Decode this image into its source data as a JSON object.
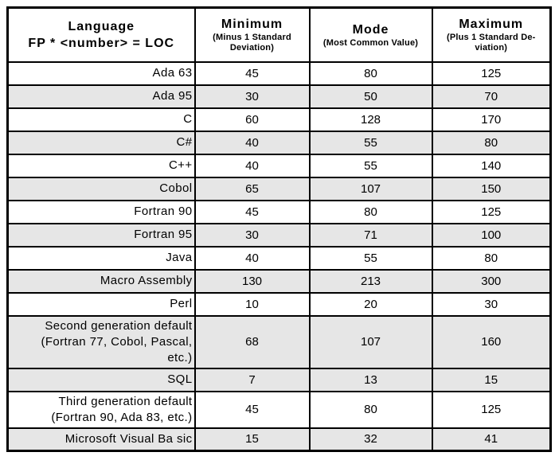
{
  "colors": {
    "row_shade": "#e6e6e6",
    "border": "#000000",
    "background": "#ffffff"
  },
  "table": {
    "header": {
      "language_title": "Language\nFP * <number> = LOC",
      "columns": [
        {
          "title": "Minimum",
          "subtitle": "(Minus 1 Standard\nDeviation)"
        },
        {
          "title": "Mode",
          "subtitle": "(Most Common Value)"
        },
        {
          "title": "Maximum",
          "subtitle": "(Plus 1 Standard De-\nviation)"
        }
      ]
    },
    "rows": [
      {
        "language": "Ada 63",
        "minimum": "45",
        "mode": "80",
        "maximum": "125",
        "shaded": false
      },
      {
        "language": "Ada 95",
        "minimum": "30",
        "mode": "50",
        "maximum": "70",
        "shaded": true
      },
      {
        "language": "C",
        "minimum": "60",
        "mode": "128",
        "maximum": "170",
        "shaded": false
      },
      {
        "language": "C#",
        "minimum": "40",
        "mode": "55",
        "maximum": "80",
        "shaded": true
      },
      {
        "language": "C++",
        "minimum": "40",
        "mode": "55",
        "maximum": "140",
        "shaded": false
      },
      {
        "language": "Cobol",
        "minimum": "65",
        "mode": "107",
        "maximum": "150",
        "shaded": true
      },
      {
        "language": "Fortran 90",
        "minimum": "45",
        "mode": "80",
        "maximum": "125",
        "shaded": false
      },
      {
        "language": "Fortran 95",
        "minimum": "30",
        "mode": "71",
        "maximum": "100",
        "shaded": true
      },
      {
        "language": "Java",
        "minimum": "40",
        "mode": "55",
        "maximum": "80",
        "shaded": false
      },
      {
        "language": "Macro Assembly",
        "minimum": "130",
        "mode": "213",
        "maximum": "300",
        "shaded": true
      },
      {
        "language": "Perl",
        "minimum": "10",
        "mode": "20",
        "maximum": "30",
        "shaded": false
      },
      {
        "language": "Second generation default\n(Fortran 77, Cobol, Pascal,\netc.)",
        "minimum": "68",
        "mode": "107",
        "maximum": "160",
        "shaded": true
      },
      {
        "language": "SQL",
        "minimum": "7",
        "mode": "13",
        "maximum": "15",
        "shaded": true
      },
      {
        "language": "Third generation default\n(Fortran 90, Ada 83, etc.)",
        "minimum": "45",
        "mode": "80",
        "maximum": "125",
        "shaded": false
      },
      {
        "language": "Microsoft Visual Ba sic",
        "minimum": "15",
        "mode": "32",
        "maximum": "41",
        "shaded": true
      }
    ]
  }
}
